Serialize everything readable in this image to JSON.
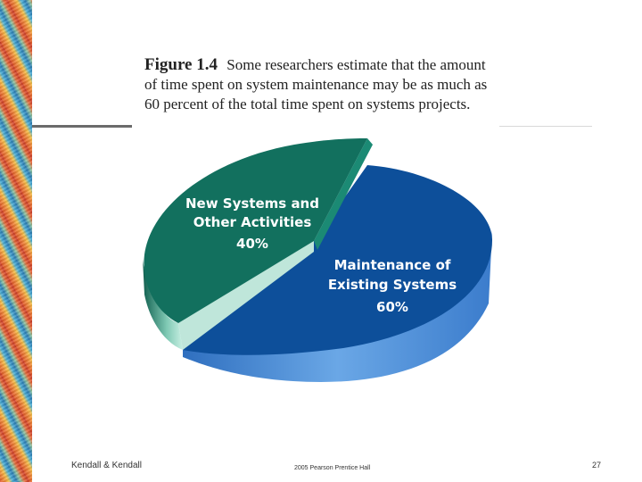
{
  "caption": {
    "figure_label": "Figure 1.4",
    "text_line1": "Some researchers estimate that the amount",
    "text_line2": "of time spent on system maintenance may be as much as",
    "text_line3": "60 percent of the total time spent on systems projects."
  },
  "chart_data": {
    "type": "pie",
    "title": "",
    "slices": [
      {
        "label_line1": "Maintenance of",
        "label_line2": "Existing Systems",
        "value": 60,
        "value_label": "60%",
        "color": "#0d4f9a",
        "side_color": "#4b8fd4"
      },
      {
        "label_line1": "New Systems and",
        "label_line2": "Other Activities",
        "value": 40,
        "value_label": "40%",
        "color": "#12705e",
        "side_color": "#9fd8c8"
      }
    ]
  },
  "footer": {
    "left": "Kendall & Kendall",
    "center": "2005 Pearson Prentice Hall",
    "page_number": "27"
  }
}
